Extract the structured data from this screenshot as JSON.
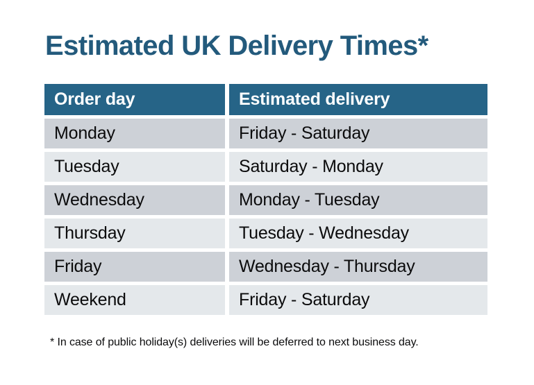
{
  "page": {
    "title": "Estimated UK Delivery Times*",
    "footnote": "* In case of public holiday(s) deliveries will be deferred to next business day."
  },
  "table": {
    "columns": [
      "Order day",
      "Estimated delivery"
    ],
    "rows": [
      {
        "order_day": "Monday",
        "estimated_delivery": "Friday - Saturday"
      },
      {
        "order_day": "Tuesday",
        "estimated_delivery": "Saturday - Monday"
      },
      {
        "order_day": "Wednesday",
        "estimated_delivery": "Monday - Tuesday"
      },
      {
        "order_day": "Thursday",
        "estimated_delivery": "Tuesday - Wednesday"
      },
      {
        "order_day": "Friday",
        "estimated_delivery": "Wednesday - Thursday"
      },
      {
        "order_day": "Weekend",
        "estimated_delivery": "Friday - Saturday"
      }
    ]
  },
  "colors": {
    "background": "#ffffff",
    "title": "#235a7c",
    "header_bg": "#266487",
    "header_text": "#ffffff",
    "row_dark": "#cdd1d7",
    "row_light": "#e4e8eb",
    "body_text": "#0b0b0c"
  }
}
